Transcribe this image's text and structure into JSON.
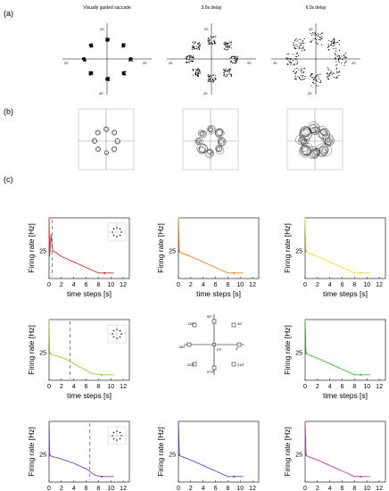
{
  "labels": {
    "a": "(a)",
    "b": "(b)",
    "c": "(c)"
  },
  "panel_a": {
    "titles": [
      "Visually guided saccade",
      "3.0s delay",
      "6.0s delay"
    ],
    "axis_numbers": {
      "left": {
        "top": "20",
        "left": "20",
        "right": "20",
        "bottom": "30"
      },
      "middle": {
        "top": "20",
        "left": "20",
        "right": "20",
        "bottom": "20"
      },
      "right": {
        "top": "20",
        "left": "20",
        "right": "20",
        "bottom": "20"
      }
    }
  },
  "panel_c": {
    "common": {
      "xlabel": "time steps [s]",
      "ylabel": "Firing rate [Hz]",
      "xticks": [
        "0",
        "2",
        "4",
        "6",
        "8",
        "10",
        "12"
      ],
      "yticks": [
        "25"
      ],
      "tick_values": [
        25
      ]
    },
    "center_diagram": {
      "directions": [
        "135°",
        "90°",
        "45°",
        "180°",
        "0°",
        "225°",
        "270°",
        "315°"
      ],
      "fp_label": "FP"
    }
  },
  "chart_data": [
    {
      "type": "line",
      "panel": "c-1-1",
      "color": "#d42a2a",
      "series": [
        {
          "x": [
            0,
            0.1,
            0.3,
            0.6,
            1.0,
            2.0,
            4.0,
            6.0,
            8.0,
            9.0,
            10.5
          ],
          "y": [
            55,
            20,
            40,
            25,
            24,
            20,
            15,
            10,
            5,
            5,
            5
          ]
        }
      ],
      "cue_line": 0.5,
      "xlim": [
        0,
        13
      ],
      "ylim": [
        0,
        55
      ]
    },
    {
      "type": "line",
      "panel": "c-1-2",
      "color": "#f0801a",
      "series": [
        {
          "x": [
            0,
            0.15,
            0.6,
            2.0,
            4.0,
            6.0,
            8.0,
            9.0,
            10.5
          ],
          "y": [
            55,
            24,
            23,
            20,
            15,
            10,
            5,
            5,
            5
          ]
        }
      ],
      "xlim": [
        0,
        13
      ],
      "ylim": [
        0,
        55
      ]
    },
    {
      "type": "line",
      "panel": "c-1-3",
      "color": "#e8e31a",
      "series": [
        {
          "x": [
            0,
            0.15,
            0.6,
            2.0,
            4.0,
            6.0,
            8.0,
            9.0,
            10.5
          ],
          "y": [
            55,
            24,
            23,
            20,
            15,
            10,
            5,
            5,
            5
          ]
        }
      ],
      "xlim": [
        0,
        13
      ],
      "ylim": [
        0,
        55
      ]
    },
    {
      "type": "line",
      "panel": "c-2-1",
      "color": "#8ed024",
      "series": [
        {
          "x": [
            0,
            0.1,
            0.6,
            2.0,
            3.5,
            5.0,
            7.0,
            8.5,
            10.5
          ],
          "y": [
            55,
            24,
            23,
            21,
            17,
            12,
            6,
            5,
            5
          ]
        }
      ],
      "cue_line": 3.4,
      "xlim": [
        0,
        13
      ],
      "ylim": [
        0,
        55
      ]
    },
    {
      "type": "line",
      "panel": "c-2-3",
      "color": "#35c02e",
      "series": [
        {
          "x": [
            0,
            0.15,
            0.6,
            2.0,
            4.0,
            6.0,
            8.0,
            9.0,
            10.5
          ],
          "y": [
            55,
            24,
            23,
            20,
            15,
            10,
            5,
            5,
            5
          ]
        }
      ],
      "xlim": [
        0,
        13
      ],
      "ylim": [
        0,
        55
      ]
    },
    {
      "type": "line",
      "panel": "c-3-1",
      "color": "#7a38c9",
      "series": [
        {
          "x": [
            0,
            0.1,
            0.6,
            2.0,
            4.0,
            6.0,
            7.5,
            8.5,
            10.5
          ],
          "y": [
            55,
            24,
            23,
            21,
            17,
            12,
            6,
            5,
            5
          ]
        }
      ],
      "cue_line": 6.6,
      "xlim": [
        0,
        13
      ],
      "ylim": [
        0,
        55
      ]
    },
    {
      "type": "line",
      "panel": "c-3-2",
      "color": "#6b3cc8",
      "series": [
        {
          "x": [
            0,
            0.15,
            0.6,
            2.0,
            4.0,
            6.0,
            8.0,
            9.0,
            10.5
          ],
          "y": [
            55,
            24,
            23,
            20,
            15,
            10,
            5,
            5,
            5
          ]
        }
      ],
      "xlim": [
        0,
        13
      ],
      "ylim": [
        0,
        55
      ]
    },
    {
      "type": "line",
      "panel": "c-3-3",
      "color": "#cc2fb5",
      "series": [
        {
          "x": [
            0,
            0.15,
            0.6,
            2.0,
            4.0,
            6.0,
            8.0,
            9.0,
            10.5
          ],
          "y": [
            55,
            24,
            23,
            20,
            15,
            10,
            5,
            5,
            5
          ]
        }
      ],
      "xlim": [
        0,
        13
      ],
      "ylim": [
        0,
        55
      ]
    }
  ]
}
